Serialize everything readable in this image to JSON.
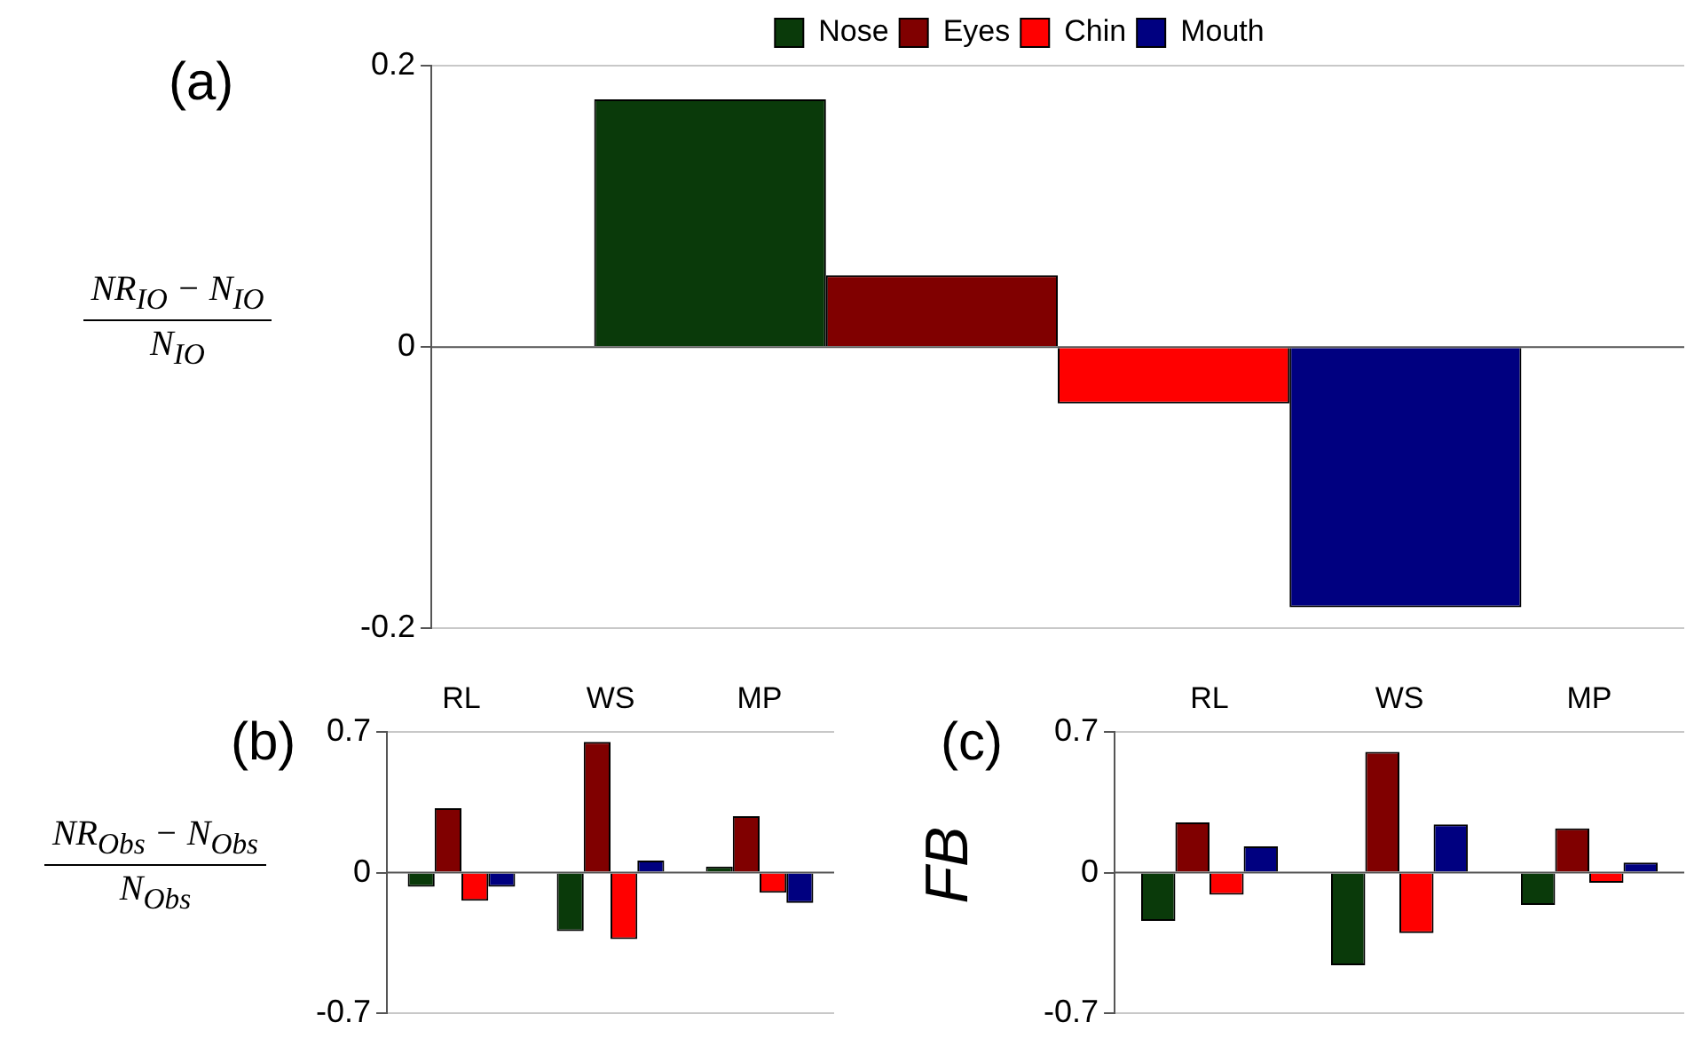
{
  "chart_data": [
    {
      "type": "bar",
      "title": "(a)",
      "ylabel": "NR$_{IO}$ − N$_{IO}$\nN$_{IO}$",
      "categories": [
        null
      ],
      "series": [
        {
          "name": "Nose",
          "color": "#0a3a0a",
          "values": [
            0.176
          ]
        },
        {
          "name": "Eyes",
          "color": "#800000",
          "values": [
            0.051
          ]
        },
        {
          "name": "Chin",
          "color": "#ff0000",
          "values": [
            -0.04
          ]
        },
        {
          "name": "Mouth",
          "color": "#000080",
          "values": [
            -0.185
          ]
        }
      ],
      "ylim": [
        -0.2,
        0.2
      ],
      "yticks": [
        -0.2,
        0,
        0.2
      ],
      "grid": "y",
      "legend": "top",
      "tick_labels": "y"
    },
    {
      "type": "bar",
      "title": "(b)",
      "ylabel": "NR$_{Obs}$ − N$_{Obs}$\nN$_{Obs}$",
      "categories": [
        "RL",
        "WS",
        "MP"
      ],
      "series": [
        {
          "color": "#0a3a0a",
          "values": [
            -0.07,
            -0.29,
            0.03
          ]
        },
        {
          "color": "#800000",
          "values": [
            0.32,
            0.65,
            0.28
          ]
        },
        {
          "color": "#ff0000",
          "values": [
            -0.14,
            -0.33,
            -0.1
          ]
        },
        {
          "color": "#000080",
          "values": [
            -0.07,
            0.06,
            -0.15
          ]
        }
      ],
      "ylim": [
        -0.7,
        0.7
      ],
      "yticks": [
        -0.7,
        0,
        0.7
      ],
      "grid": "y"
    },
    {
      "type": "bar",
      "title": "(c)",
      "ylabel": "FB",
      "categories": [
        "RL",
        "WS",
        "MP"
      ],
      "series": [
        {
          "color": "#0a3a0a",
          "values": [
            -0.24,
            -0.46,
            -0.16
          ]
        },
        {
          "color": "#800000",
          "values": [
            0.25,
            0.6,
            0.22
          ]
        },
        {
          "color": "#ff0000",
          "values": [
            -0.11,
            -0.3,
            -0.05
          ]
        },
        {
          "color": "#000080",
          "values": [
            0.13,
            0.24,
            0.05
          ]
        }
      ],
      "ylim": [
        -0.7,
        0.7
      ],
      "yticks": [
        -0.7,
        0,
        0.7
      ],
      "grid": "y"
    }
  ]
}
